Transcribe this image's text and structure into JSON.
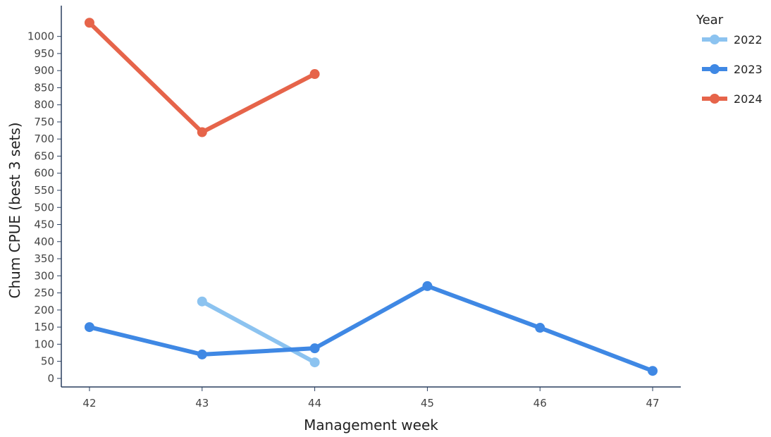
{
  "chart_data": {
    "type": "line",
    "xlabel": "Management week",
    "ylabel": "Chum CPUE (best 3 sets)",
    "x_ticks": [
      42,
      43,
      44,
      45,
      46,
      47
    ],
    "y_ticks": [
      0,
      50,
      100,
      150,
      200,
      250,
      300,
      350,
      400,
      450,
      500,
      550,
      600,
      650,
      700,
      750,
      800,
      850,
      900,
      950,
      1000
    ],
    "xlim": [
      41.75,
      47.25
    ],
    "ylim": [
      -25,
      1090
    ],
    "grid": false,
    "legend": {
      "title": "Year",
      "placement": "right"
    },
    "series": [
      {
        "name": "2022",
        "color": "#8cc3f0",
        "x": [
          43,
          44
        ],
        "y": [
          225,
          47
        ]
      },
      {
        "name": "2023",
        "color": "#3f88e4",
        "x": [
          42,
          43,
          44,
          45,
          46,
          47
        ],
        "y": [
          150,
          70,
          88,
          270,
          148,
          22
        ]
      },
      {
        "name": "2024",
        "color": "#e6644a",
        "x": [
          42,
          43,
          44
        ],
        "y": [
          1040,
          720,
          890
        ]
      }
    ]
  }
}
